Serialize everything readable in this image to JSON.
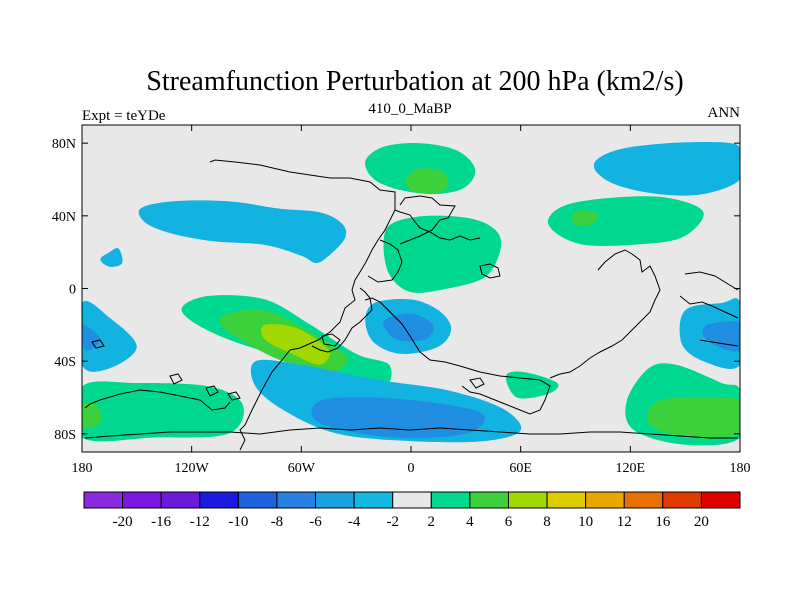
{
  "chart_data": {
    "type": "contour-map",
    "title": "Streamfunction Perturbation at 200 hPa (km2/s)",
    "left_label": "Expt = teYDe",
    "center_label": "410_0_MaBP",
    "right_label": "ANN",
    "x_ticks": [
      {
        "lon": -180,
        "label": "180"
      },
      {
        "lon": -120,
        "label": "120W"
      },
      {
        "lon": -60,
        "label": "60W"
      },
      {
        "lon": 0,
        "label": "0"
      },
      {
        "lon": 60,
        "label": "60E"
      },
      {
        "lon": 120,
        "label": "120E"
      },
      {
        "lon": 180,
        "label": "180"
      }
    ],
    "y_ticks": [
      {
        "lat": 80,
        "label": "80N"
      },
      {
        "lat": 40,
        "label": "40N"
      },
      {
        "lat": 0,
        "label": "0"
      },
      {
        "lat": -40,
        "label": "40S"
      },
      {
        "lat": -80,
        "label": "80S"
      }
    ],
    "xlim": [
      -180,
      180
    ],
    "ylim": [
      -90,
      90
    ],
    "colorbar": {
      "colors": [
        "#8a2be2",
        "#7a18e0",
        "#6a1ad8",
        "#1a1ae0",
        "#1f5fe0",
        "#2a80e0",
        "#1ca0e0",
        "#12b8e0",
        "#e8e8e8",
        "#00d890",
        "#3cd03c",
        "#a0d800",
        "#dccc00",
        "#e8a800",
        "#e87000",
        "#e03a00",
        "#e00000"
      ],
      "labels": [
        "-20",
        "-16",
        "-12",
        "-10",
        "-8",
        "-6",
        "-4",
        "-2",
        "2",
        "4",
        "6",
        "8",
        "10",
        "12",
        "16",
        "20"
      ]
    },
    "features": [
      {
        "name": "neg-n-pacific",
        "level": -4,
        "points": [
          [
            -148,
            44
          ],
          [
            -130,
            48
          ],
          [
            -100,
            48
          ],
          [
            -72,
            44
          ],
          [
            -50,
            42
          ],
          [
            -38,
            36
          ],
          [
            -36,
            28
          ],
          [
            -45,
            18
          ],
          [
            -52,
            14
          ],
          [
            -60,
            18
          ],
          [
            -80,
            24
          ],
          [
            -108,
            26
          ],
          [
            -130,
            30
          ],
          [
            -145,
            36
          ]
        ]
      },
      {
        "name": "neg-small-pacific",
        "level": -4,
        "points": [
          [
            -170,
            16
          ],
          [
            -165,
            20
          ],
          [
            -160,
            22
          ],
          [
            -158,
            14
          ],
          [
            -165,
            12
          ]
        ]
      },
      {
        "name": "pos-greenland",
        "level": 4,
        "points": [
          [
            -25,
            70
          ],
          [
            -15,
            78
          ],
          [
            5,
            80
          ],
          [
            25,
            76
          ],
          [
            35,
            66
          ],
          [
            30,
            56
          ],
          [
            15,
            52
          ],
          [
            -5,
            54
          ],
          [
            -20,
            60
          ]
        ]
      },
      {
        "name": "pos-greenland-core",
        "level": 6,
        "points": [
          [
            -3,
            60
          ],
          [
            5,
            66
          ],
          [
            18,
            64
          ],
          [
            20,
            56
          ],
          [
            12,
            52
          ],
          [
            0,
            54
          ]
        ]
      },
      {
        "name": "pos-europe",
        "level": 4,
        "points": [
          [
            -15,
            26
          ],
          [
            -10,
            36
          ],
          [
            10,
            40
          ],
          [
            35,
            38
          ],
          [
            48,
            30
          ],
          [
            48,
            18
          ],
          [
            40,
            6
          ],
          [
            20,
            0
          ],
          [
            0,
            -2
          ],
          [
            -12,
            8
          ]
        ]
      },
      {
        "name": "pos-asia",
        "level": 4,
        "points": [
          [
            75,
            38
          ],
          [
            85,
            46
          ],
          [
            110,
            50
          ],
          [
            140,
            50
          ],
          [
            160,
            42
          ],
          [
            148,
            28
          ],
          [
            120,
            24
          ],
          [
            95,
            24
          ],
          [
            80,
            30
          ]
        ]
      },
      {
        "name": "pos-asia-core",
        "level": 6,
        "points": [
          [
            88,
            40
          ],
          [
            93,
            43
          ],
          [
            102,
            41
          ],
          [
            98,
            35
          ],
          [
            90,
            35
          ]
        ]
      },
      {
        "name": "neg-n-pacific-east",
        "level": -4,
        "points": [
          [
            100,
            68
          ],
          [
            112,
            76
          ],
          [
            140,
            80
          ],
          [
            175,
            80
          ],
          [
            180,
            74
          ],
          [
            180,
            60
          ],
          [
            160,
            52
          ],
          [
            135,
            52
          ],
          [
            110,
            58
          ]
        ]
      },
      {
        "name": "pos-tropical-atlantic",
        "level": 4,
        "points": [
          [
            -125,
            -10
          ],
          [
            -110,
            -4
          ],
          [
            -80,
            -6
          ],
          [
            -55,
            -20
          ],
          [
            -30,
            -36
          ],
          [
            -12,
            -42
          ],
          [
            -15,
            -54
          ],
          [
            -40,
            -48
          ],
          [
            -70,
            -38
          ],
          [
            -100,
            -28
          ],
          [
            -120,
            -18
          ]
        ]
      },
      {
        "name": "pos-tropical-core",
        "level": 6,
        "points": [
          [
            -100,
            -14
          ],
          [
            -80,
            -12
          ],
          [
            -55,
            -24
          ],
          [
            -35,
            -38
          ],
          [
            -45,
            -46
          ],
          [
            -70,
            -40
          ],
          [
            -90,
            -30
          ],
          [
            -104,
            -20
          ]
        ]
      },
      {
        "name": "pos-tropical-inner",
        "level": 8,
        "points": [
          [
            -80,
            -20
          ],
          [
            -62,
            -22
          ],
          [
            -45,
            -34
          ],
          [
            -50,
            -42
          ],
          [
            -65,
            -36
          ],
          [
            -80,
            -28
          ]
        ]
      },
      {
        "name": "neg-s-atlantic",
        "level": -4,
        "points": [
          [
            -25,
            -18
          ],
          [
            -20,
            -8
          ],
          [
            0,
            -6
          ],
          [
            15,
            -12
          ],
          [
            22,
            -22
          ],
          [
            15,
            -32
          ],
          [
            -5,
            -36
          ],
          [
            -20,
            -30
          ]
        ]
      },
      {
        "name": "neg-s-atlantic-core",
        "level": -6,
        "points": [
          [
            -15,
            -18
          ],
          [
            0,
            -14
          ],
          [
            12,
            -20
          ],
          [
            8,
            -28
          ],
          [
            -8,
            -28
          ]
        ]
      },
      {
        "name": "neg-south-pacific",
        "level": -4,
        "points": [
          [
            -180,
            -8
          ],
          [
            -165,
            -16
          ],
          [
            -150,
            -32
          ],
          [
            -165,
            -44
          ],
          [
            -180,
            -42
          ]
        ]
      },
      {
        "name": "neg-south-pacific-core",
        "level": -6,
        "points": [
          [
            -180,
            -20
          ],
          [
            -170,
            -28
          ],
          [
            -178,
            -34
          ]
        ]
      },
      {
        "name": "neg-sw-pacific",
        "level": -4,
        "points": [
          [
            150,
            -12
          ],
          [
            170,
            -8
          ],
          [
            180,
            -8
          ],
          [
            180,
            -42
          ],
          [
            160,
            -40
          ],
          [
            148,
            -30
          ]
        ]
      },
      {
        "name": "neg-sw-pacific-core",
        "level": -6,
        "points": [
          [
            162,
            -20
          ],
          [
            175,
            -18
          ],
          [
            180,
            -20
          ],
          [
            180,
            -34
          ],
          [
            168,
            -32
          ],
          [
            160,
            -26
          ]
        ]
      },
      {
        "name": "pos-s-indian",
        "level": 4,
        "points": [
          [
            52,
            -48
          ],
          [
            62,
            -46
          ],
          [
            80,
            -52
          ],
          [
            75,
            -58
          ],
          [
            58,
            -60
          ]
        ]
      },
      {
        "name": "pos-southern-ocean",
        "level": 4,
        "points": [
          [
            -180,
            -54
          ],
          [
            -150,
            -52
          ],
          [
            -110,
            -54
          ],
          [
            -92,
            -64
          ],
          [
            -100,
            -80
          ],
          [
            -140,
            -82
          ],
          [
            -180,
            -82
          ]
        ]
      },
      {
        "name": "pos-southern-ocean-core",
        "level": 6,
        "points": [
          [
            -180,
            -64
          ],
          [
            -172,
            -64
          ],
          [
            -170,
            -74
          ],
          [
            -180,
            -76
          ]
        ]
      },
      {
        "name": "neg-s-atlantic-large",
        "level": -4,
        "points": [
          [
            -85,
            -40
          ],
          [
            -60,
            -42
          ],
          [
            -20,
            -50
          ],
          [
            20,
            -56
          ],
          [
            50,
            -66
          ],
          [
            60,
            -78
          ],
          [
            40,
            -84
          ],
          [
            0,
            -84
          ],
          [
            -40,
            -80
          ],
          [
            -68,
            -68
          ],
          [
            -85,
            -54
          ]
        ]
      },
      {
        "name": "neg-s-atlantic-large-core",
        "level": -6,
        "points": [
          [
            -50,
            -62
          ],
          [
            -20,
            -60
          ],
          [
            20,
            -64
          ],
          [
            40,
            -70
          ],
          [
            30,
            -80
          ],
          [
            -10,
            -82
          ],
          [
            -50,
            -74
          ]
        ]
      },
      {
        "name": "pos-se-pacific",
        "level": 4,
        "points": [
          [
            130,
            -44
          ],
          [
            145,
            -42
          ],
          [
            170,
            -52
          ],
          [
            180,
            -56
          ],
          [
            180,
            -82
          ],
          [
            150,
            -86
          ],
          [
            122,
            -78
          ],
          [
            118,
            -62
          ]
        ]
      },
      {
        "name": "pos-se-pacific-core",
        "level": 6,
        "points": [
          [
            135,
            -62
          ],
          [
            160,
            -60
          ],
          [
            180,
            -62
          ],
          [
            180,
            -80
          ],
          [
            150,
            -82
          ],
          [
            130,
            -74
          ]
        ]
      }
    ]
  }
}
